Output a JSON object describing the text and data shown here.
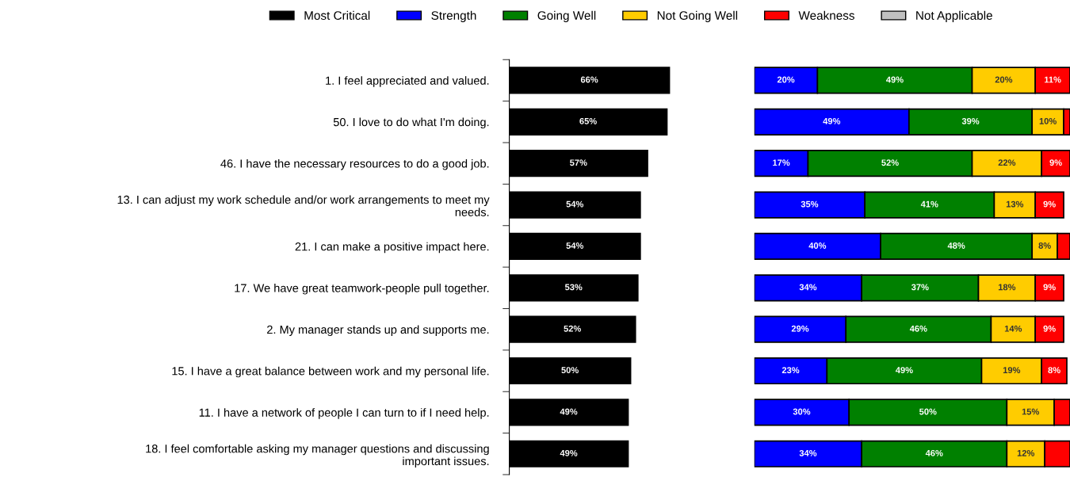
{
  "chart_data": [
    {
      "type": "bar",
      "orientation": "horizontal",
      "legend": "top",
      "tick_labels": "y",
      "categories": [
        "1. I feel appreciated and valued.",
        "50. I love to do what I'm doing.",
        "46. I have the necessary resources to do a good job.",
        "13. I can adjust my work schedule and/or work arrangements to meet my needs.",
        "21. I can make a positive impact here.",
        "17. We have great teamwork-people pull together.",
        "2. My manager stands up and supports me.",
        "15. I have a great balance between work and my personal life.",
        "11. I have a network of people I can turn to if I need help.",
        "18. I feel comfortable asking my manager questions and discussing important issues."
      ],
      "series": [
        {
          "name": "Most Critical",
          "color": "#000000",
          "values": [
            66,
            65,
            57,
            54,
            54,
            53,
            52,
            50,
            49,
            49
          ],
          "value_labels": [
            "66%",
            "65%",
            "57%",
            "54%",
            "54%",
            "53%",
            "52%",
            "50%",
            "49%",
            "49%"
          ]
        }
      ]
    },
    {
      "type": "bar",
      "orientation": "horizontal",
      "stacked": true,
      "legend": "top",
      "tick_labels": false,
      "categories": [
        null,
        null,
        null,
        null,
        null,
        null,
        null,
        null,
        null,
        null
      ],
      "series": [
        {
          "name": "Strength",
          "color": "#0000ff",
          "values": [
            20,
            49,
            17,
            35,
            40,
            34,
            29,
            23,
            30,
            34
          ],
          "value_labels": [
            "20%",
            "49%",
            "17%",
            "35%",
            "40%",
            "34%",
            "29%",
            "23%",
            "30%",
            "34%"
          ]
        },
        {
          "name": "Going Well",
          "color": "#008000",
          "values": [
            49,
            39,
            52,
            41,
            48,
            37,
            46,
            49,
            50,
            46
          ],
          "value_labels": [
            "49%",
            "39%",
            "52%",
            "41%",
            "48%",
            "37%",
            "46%",
            "49%",
            "50%",
            "46%"
          ]
        },
        {
          "name": "Not Going Well",
          "color": "#ffcc00",
          "values": [
            20,
            10,
            22,
            13,
            8,
            18,
            14,
            19,
            15,
            12
          ],
          "value_labels": [
            "20%",
            "10%",
            "22%",
            "13%",
            "8%",
            "18%",
            "14%",
            "19%",
            "15%",
            "12%"
          ]
        },
        {
          "name": "Weakness",
          "color": "#ff0000",
          "values": [
            11,
            2,
            9,
            9,
            4,
            9,
            9,
            8,
            5,
            8
          ],
          "value_labels": [
            "11%",
            null,
            "9%",
            "9%",
            null,
            "9%",
            "9%",
            "8%",
            null,
            null
          ]
        },
        {
          "name": "Not Applicable",
          "color": "#c0c0c0",
          "values": [
            null,
            null,
            null,
            null,
            null,
            null,
            null,
            null,
            null,
            null
          ]
        }
      ]
    }
  ]
}
